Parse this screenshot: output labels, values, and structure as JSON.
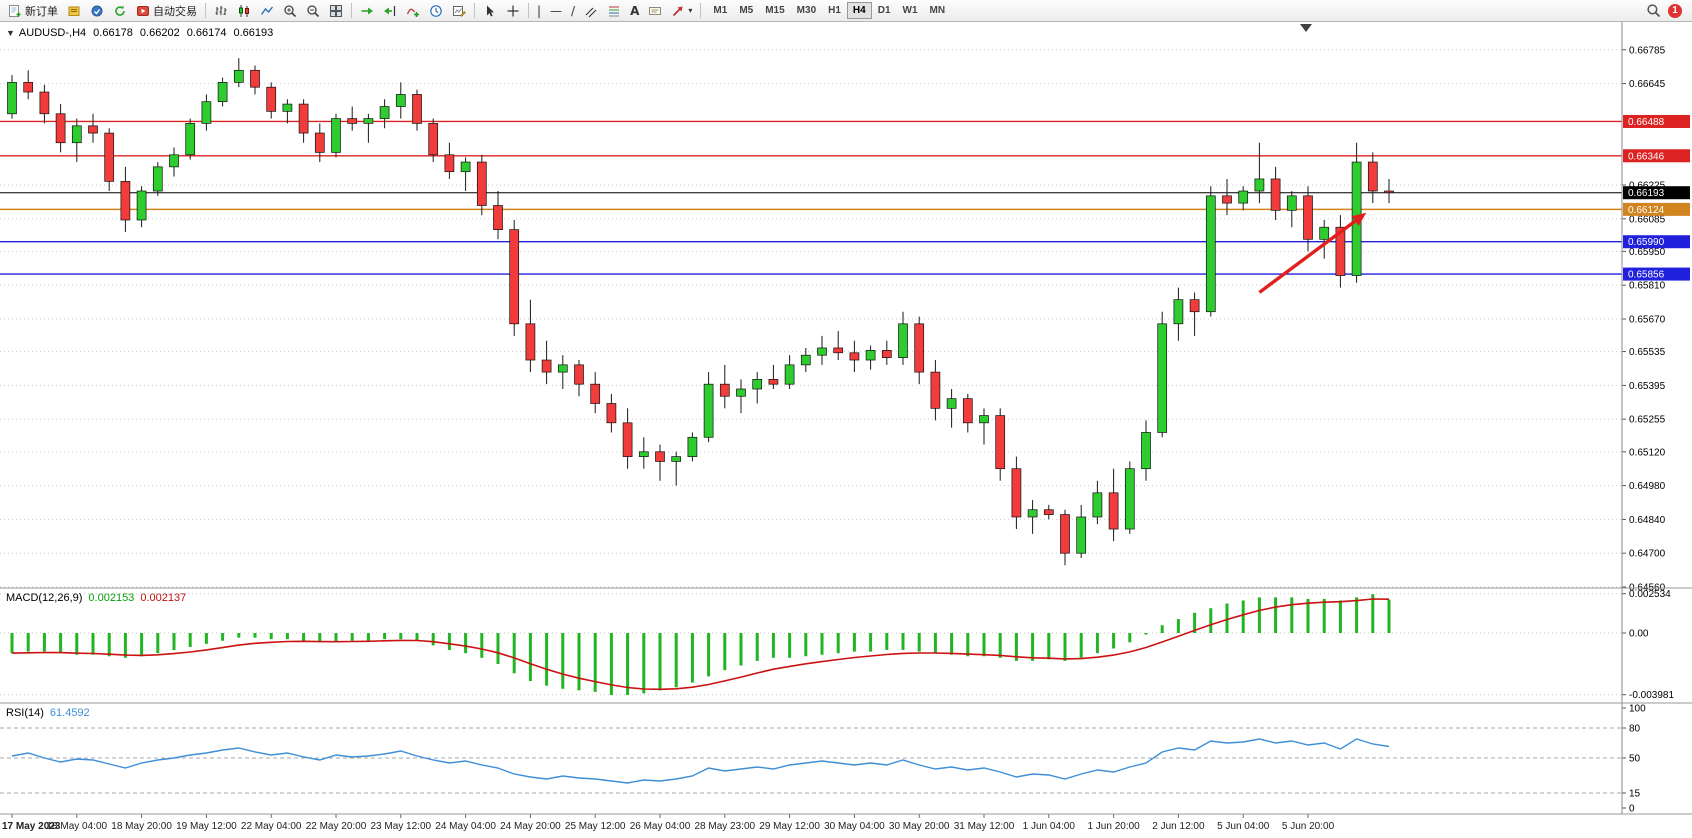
{
  "toolbar": {
    "new_order_label": "新订单",
    "auto_trading_label": "自动交易",
    "vline_glyph": "|",
    "hline_glyph": "—",
    "trendline_glyph": "/",
    "text_tool_glyph": "A",
    "arrows_dropdown_glyph": "▾",
    "timeframes": [
      "M1",
      "M5",
      "M15",
      "M30",
      "H1",
      "H4",
      "D1",
      "W1",
      "MN"
    ],
    "active_timeframe": "H4",
    "notification_count": "1"
  },
  "chart": {
    "collapse_glyph": "▼",
    "symbol": "AUDUSD-,H4",
    "open": "0.66178",
    "high": "0.66202",
    "low": "0.66174",
    "close": "0.66193"
  },
  "chart_data": [
    {
      "type": "candlestick",
      "symbol": "AUDUSD-",
      "timeframe": "H4",
      "title": "AUDUSD-,H4 0.66178 0.66202 0.66174 0.66193",
      "up_color": "#2ecc2e",
      "down_color": "#f23b3b",
      "wick_color": "#1a1a1a",
      "y_axis": {
        "min": 0.6456,
        "max": 0.669,
        "ticks": [
          {
            "label": "0.66785",
            "price": 0.66785
          },
          {
            "label": "0.66645",
            "price": 0.66645
          },
          {
            "label": "0.66225",
            "price": 0.66225
          },
          {
            "label": "0.66085",
            "price": 0.66085
          },
          {
            "label": "0.65950",
            "price": 0.6595
          },
          {
            "label": "0.65810",
            "price": 0.6581
          },
          {
            "label": "0.65670",
            "price": 0.6567
          },
          {
            "label": "0.65535",
            "price": 0.65535
          },
          {
            "label": "0.65395",
            "price": 0.65395
          },
          {
            "label": "0.65255",
            "price": 0.65255
          },
          {
            "label": "0.65120",
            "price": 0.6512
          },
          {
            "label": "0.64980",
            "price": 0.6498
          },
          {
            "label": "0.64840",
            "price": 0.6484
          },
          {
            "label": "0.64700",
            "price": 0.647
          },
          {
            "label": "0.64560",
            "price": 0.6456
          }
        ]
      },
      "levels": [
        {
          "price": 0.66488,
          "label": "0.66488",
          "color": "#dd2222",
          "role": "resistance"
        },
        {
          "price": 0.66346,
          "label": "0.66346",
          "color": "#dd2222",
          "role": "resistance"
        },
        {
          "price": 0.66193,
          "label": "0.66193",
          "color": "#000000",
          "role": "current-price"
        },
        {
          "price": 0.66124,
          "label": "0.66124",
          "color": "#d2841e",
          "role": "pivot"
        },
        {
          "price": 0.6599,
          "label": "0.65990",
          "color": "#2020dd",
          "role": "support"
        },
        {
          "price": 0.65856,
          "label": "0.65856",
          "color": "#2020dd",
          "role": "support"
        }
      ],
      "annotation_arrow": {
        "from_bar": 77,
        "from_price": 0.6578,
        "to_bar": 83.6,
        "to_price": 0.6611,
        "color": "#e01f1f"
      },
      "x_labels": [
        "17 May 2023",
        "18 May 04:00",
        "18 May 20:00",
        "19 May 12:00",
        "22 May 04:00",
        "22 May 20:00",
        "23 May 12:00",
        "24 May 04:00",
        "24 May 20:00",
        "25 May 12:00",
        "26 May 04:00",
        "28 May 23:00",
        "29 May 12:00",
        "30 May 04:00",
        "30 May 20:00",
        "31 May 12:00",
        "1 Jun 04:00",
        "1 Jun 20:00",
        "2 Jun 12:00",
        "5 Jun 04:00",
        "5 Jun 20:00"
      ],
      "x_label_every_n_bars": 4,
      "candles": [
        [
          0.6652,
          0.6668,
          0.665,
          0.6665
        ],
        [
          0.6665,
          0.667,
          0.6658,
          0.6661
        ],
        [
          0.6661,
          0.6664,
          0.6648,
          0.6652
        ],
        [
          0.6652,
          0.6656,
          0.6636,
          0.664
        ],
        [
          0.664,
          0.665,
          0.6632,
          0.6647
        ],
        [
          0.6647,
          0.6652,
          0.664,
          0.6644
        ],
        [
          0.6644,
          0.6646,
          0.662,
          0.6624
        ],
        [
          0.6624,
          0.663,
          0.6603,
          0.6608
        ],
        [
          0.6608,
          0.6622,
          0.6605,
          0.662
        ],
        [
          0.662,
          0.6632,
          0.6618,
          0.663
        ],
        [
          0.663,
          0.6638,
          0.6626,
          0.6635
        ],
        [
          0.6635,
          0.665,
          0.6633,
          0.6648
        ],
        [
          0.6648,
          0.666,
          0.6645,
          0.6657
        ],
        [
          0.6657,
          0.6667,
          0.6655,
          0.6665
        ],
        [
          0.6665,
          0.6675,
          0.6663,
          0.667
        ],
        [
          0.667,
          0.6672,
          0.666,
          0.6663
        ],
        [
          0.6663,
          0.6665,
          0.665,
          0.6653
        ],
        [
          0.6653,
          0.6658,
          0.6648,
          0.6656
        ],
        [
          0.6656,
          0.6658,
          0.664,
          0.6644
        ],
        [
          0.6644,
          0.6648,
          0.6632,
          0.6636
        ],
        [
          0.6636,
          0.6652,
          0.6634,
          0.665
        ],
        [
          0.665,
          0.6655,
          0.6645,
          0.6648
        ],
        [
          0.6648,
          0.6652,
          0.664,
          0.665
        ],
        [
          0.665,
          0.6658,
          0.6646,
          0.6655
        ],
        [
          0.6655,
          0.6665,
          0.665,
          0.666
        ],
        [
          0.666,
          0.6662,
          0.6645,
          0.6648
        ],
        [
          0.6648,
          0.665,
          0.6632,
          0.6635
        ],
        [
          0.6635,
          0.664,
          0.6625,
          0.6628
        ],
        [
          0.6628,
          0.6634,
          0.662,
          0.6632
        ],
        [
          0.6632,
          0.6635,
          0.661,
          0.6614
        ],
        [
          0.6614,
          0.662,
          0.66,
          0.6604
        ],
        [
          0.6604,
          0.6608,
          0.656,
          0.6565
        ],
        [
          0.6565,
          0.6575,
          0.6545,
          0.655
        ],
        [
          0.655,
          0.6558,
          0.654,
          0.6545
        ],
        [
          0.6545,
          0.6552,
          0.6538,
          0.6548
        ],
        [
          0.6548,
          0.655,
          0.6535,
          0.654
        ],
        [
          0.654,
          0.6545,
          0.6528,
          0.6532
        ],
        [
          0.6532,
          0.6536,
          0.652,
          0.6524
        ],
        [
          0.6524,
          0.653,
          0.6505,
          0.651
        ],
        [
          0.651,
          0.6518,
          0.6505,
          0.6512
        ],
        [
          0.6512,
          0.6515,
          0.65,
          0.6508
        ],
        [
          0.6508,
          0.6512,
          0.6498,
          0.651
        ],
        [
          0.651,
          0.652,
          0.6508,
          0.6518
        ],
        [
          0.6518,
          0.6545,
          0.6516,
          0.654
        ],
        [
          0.654,
          0.6548,
          0.653,
          0.6535
        ],
        [
          0.6535,
          0.6542,
          0.6528,
          0.6538
        ],
        [
          0.6538,
          0.6545,
          0.6532,
          0.6542
        ],
        [
          0.6542,
          0.6548,
          0.6538,
          0.654
        ],
        [
          0.654,
          0.6552,
          0.6538,
          0.6548
        ],
        [
          0.6548,
          0.6555,
          0.6545,
          0.6552
        ],
        [
          0.6552,
          0.656,
          0.6548,
          0.6555
        ],
        [
          0.6555,
          0.6562,
          0.655,
          0.6553
        ],
        [
          0.6553,
          0.6558,
          0.6545,
          0.655
        ],
        [
          0.655,
          0.6556,
          0.6546,
          0.6554
        ],
        [
          0.6554,
          0.6558,
          0.6548,
          0.6551
        ],
        [
          0.6551,
          0.657,
          0.6548,
          0.6565
        ],
        [
          0.6565,
          0.6568,
          0.654,
          0.6545
        ],
        [
          0.6545,
          0.655,
          0.6525,
          0.653
        ],
        [
          0.653,
          0.6538,
          0.6522,
          0.6534
        ],
        [
          0.6534,
          0.6536,
          0.652,
          0.6524
        ],
        [
          0.6524,
          0.653,
          0.6515,
          0.6527
        ],
        [
          0.6527,
          0.653,
          0.65,
          0.6505
        ],
        [
          0.6505,
          0.651,
          0.648,
          0.6485
        ],
        [
          0.6485,
          0.6492,
          0.6478,
          0.6488
        ],
        [
          0.6488,
          0.649,
          0.6484,
          0.6486
        ],
        [
          0.6486,
          0.6488,
          0.6465,
          0.647
        ],
        [
          0.647,
          0.649,
          0.6468,
          0.6485
        ],
        [
          0.6485,
          0.65,
          0.6482,
          0.6495
        ],
        [
          0.6495,
          0.6505,
          0.6475,
          0.648
        ],
        [
          0.648,
          0.6508,
          0.6478,
          0.6505
        ],
        [
          0.6505,
          0.6525,
          0.65,
          0.652
        ],
        [
          0.652,
          0.657,
          0.6518,
          0.6565
        ],
        [
          0.6565,
          0.658,
          0.6558,
          0.6575
        ],
        [
          0.6575,
          0.6578,
          0.656,
          0.657
        ],
        [
          0.657,
          0.6622,
          0.6568,
          0.6618
        ],
        [
          0.6618,
          0.6625,
          0.661,
          0.6615
        ],
        [
          0.6615,
          0.6622,
          0.6612,
          0.662
        ],
        [
          0.662,
          0.664,
          0.6615,
          0.6625
        ],
        [
          0.6625,
          0.663,
          0.6608,
          0.6612
        ],
        [
          0.6612,
          0.662,
          0.6605,
          0.6618
        ],
        [
          0.6618,
          0.6622,
          0.6595,
          0.66
        ],
        [
          0.66,
          0.6608,
          0.6592,
          0.6605
        ],
        [
          0.6605,
          0.661,
          0.658,
          0.6585
        ],
        [
          0.6585,
          0.664,
          0.6582,
          0.6632
        ],
        [
          0.6632,
          0.6636,
          0.6615,
          0.662
        ],
        [
          0.662,
          0.6625,
          0.6615,
          0.66193
        ]
      ]
    },
    {
      "type": "bar",
      "name": "MACD",
      "label": "MACD(12,26,9)",
      "value_main": "0.002153",
      "value_signal": "0.002137",
      "bar_color": "#22b422",
      "signal_color": "#cc1111",
      "y_ticks": [
        {
          "label": "0.002534",
          "v": 0.002534
        },
        {
          "label": "0.00",
          "v": 0
        },
        {
          "label": "-0.003981",
          "v": -0.003981
        }
      ],
      "values": [
        -0.0013,
        -0.0012,
        -0.0012,
        -0.0013,
        -0.0014,
        -0.0014,
        -0.0015,
        -0.0016,
        -0.0015,
        -0.0013,
        -0.0011,
        -0.0009,
        -0.0007,
        -0.0005,
        -0.0003,
        -0.0003,
        -0.0004,
        -0.0004,
        -0.0005,
        -0.0006,
        -0.0006,
        -0.0005,
        -0.0005,
        -0.0004,
        -0.0004,
        -0.0005,
        -0.0008,
        -0.0011,
        -0.0013,
        -0.0016,
        -0.002,
        -0.0026,
        -0.0031,
        -0.0034,
        -0.0036,
        -0.0037,
        -0.0038,
        -0.004,
        -0.004,
        -0.0039,
        -0.0037,
        -0.0035,
        -0.0032,
        -0.0028,
        -0.0024,
        -0.0021,
        -0.0018,
        -0.0016,
        -0.0016,
        -0.0015,
        -0.0014,
        -0.0013,
        -0.0012,
        -0.0012,
        -0.0011,
        -0.0011,
        -0.0012,
        -0.0013,
        -0.0014,
        -0.0015,
        -0.0015,
        -0.0016,
        -0.0018,
        -0.0018,
        -0.0017,
        -0.0018,
        -0.0016,
        -0.0013,
        -0.001,
        -0.0006,
        -0.0001,
        0.0005,
        0.0009,
        0.0013,
        0.0016,
        0.0019,
        0.0021,
        0.0023,
        0.0023,
        0.0023,
        0.0022,
        0.0022,
        0.0021,
        0.0023,
        0.0025,
        0.002153
      ]
    },
    {
      "type": "line",
      "name": "RSI",
      "label": "RSI(14)",
      "value": "61.4592",
      "color": "#3e8fd8",
      "levels": [
        80,
        50,
        15
      ],
      "y_ticks": [
        {
          "label": "100",
          "v": 100
        },
        {
          "label": "80",
          "v": 80
        },
        {
          "label": "50",
          "v": 50
        },
        {
          "label": "15",
          "v": 15
        },
        {
          "label": "0",
          "v": 0
        }
      ],
      "values": [
        52,
        55,
        50,
        46,
        49,
        48,
        44,
        40,
        45,
        48,
        50,
        53,
        55,
        58,
        60,
        56,
        53,
        55,
        51,
        48,
        53,
        51,
        52,
        54,
        57,
        52,
        48,
        45,
        47,
        43,
        40,
        34,
        31,
        29,
        32,
        30,
        29,
        27,
        25,
        28,
        27,
        29,
        32,
        40,
        37,
        39,
        41,
        39,
        43,
        45,
        47,
        45,
        43,
        45,
        43,
        48,
        43,
        39,
        41,
        38,
        40,
        36,
        31,
        34,
        33,
        29,
        34,
        38,
        36,
        41,
        45,
        56,
        60,
        58,
        67,
        65,
        66,
        69,
        65,
        67,
        63,
        65,
        59,
        69,
        64,
        61.4592
      ]
    }
  ]
}
